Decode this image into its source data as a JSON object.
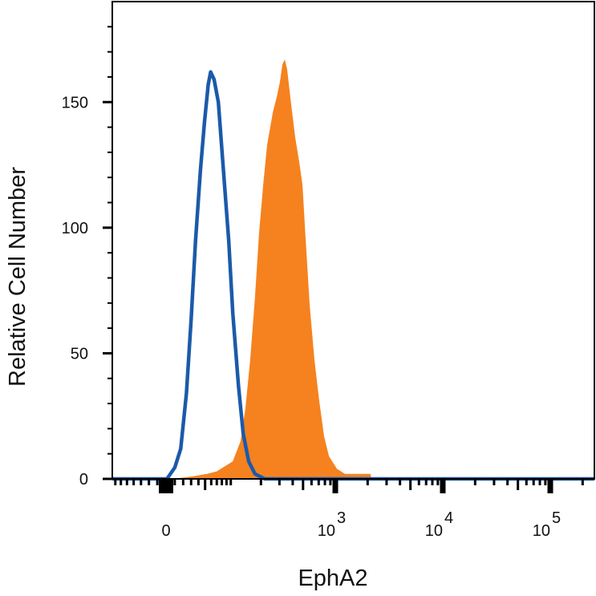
{
  "chart_data": {
    "type": "area",
    "title": "",
    "xlabel": "EphA2",
    "ylabel": "Relative Cell Number",
    "x_scale": "biexponential",
    "xlim": [
      -76,
      262144
    ],
    "ylim": [
      0,
      190
    ],
    "grid": false,
    "legend": "none",
    "y_ticks": [
      0,
      50,
      100,
      150
    ],
    "y_tick_labels": [
      "0",
      "50",
      "100",
      "150"
    ],
    "x_ticks": [
      {
        "value": 0,
        "base": "0",
        "exp": ""
      },
      {
        "value": 1000,
        "base": "10",
        "exp": "3"
      },
      {
        "value": 10000,
        "base": "10",
        "exp": "4"
      },
      {
        "value": 100000,
        "base": "10",
        "exp": "5"
      }
    ],
    "series": [
      {
        "style": "filled",
        "color": "#F5821F",
        "x": [
          -76,
          7,
          32,
          53,
          70,
          105,
          126,
          141,
          157,
          175,
          192,
          210,
          229,
          260,
          283,
          303,
          320,
          337,
          355,
          387,
          422,
          461,
          494,
          529,
          577,
          640,
          709,
          786,
          872,
          1036,
          1230,
          2128,
          2167,
          262144
        ],
        "y": [
          0,
          0,
          1,
          2,
          3,
          7,
          15,
          28,
          47,
          72,
          98,
          117,
          133,
          146,
          152,
          158,
          165,
          167,
          163,
          149,
          136,
          126,
          117,
          95,
          69,
          47,
          31,
          17,
          9,
          4,
          2,
          2,
          0,
          0
        ]
      },
      {
        "style": "outline",
        "color": "#1B5AAA",
        "x": [
          -76,
          1,
          10,
          17,
          24,
          30,
          36,
          43,
          49,
          55,
          59,
          65,
          73,
          82,
          95,
          105,
          120,
          134,
          152,
          175,
          217,
          262144
        ],
        "y": [
          0,
          0,
          4.5,
          12,
          34,
          63,
          95,
          123,
          142,
          157,
          162,
          159,
          150,
          126,
          95,
          66,
          37,
          18,
          7,
          2,
          0,
          0
        ]
      }
    ]
  }
}
